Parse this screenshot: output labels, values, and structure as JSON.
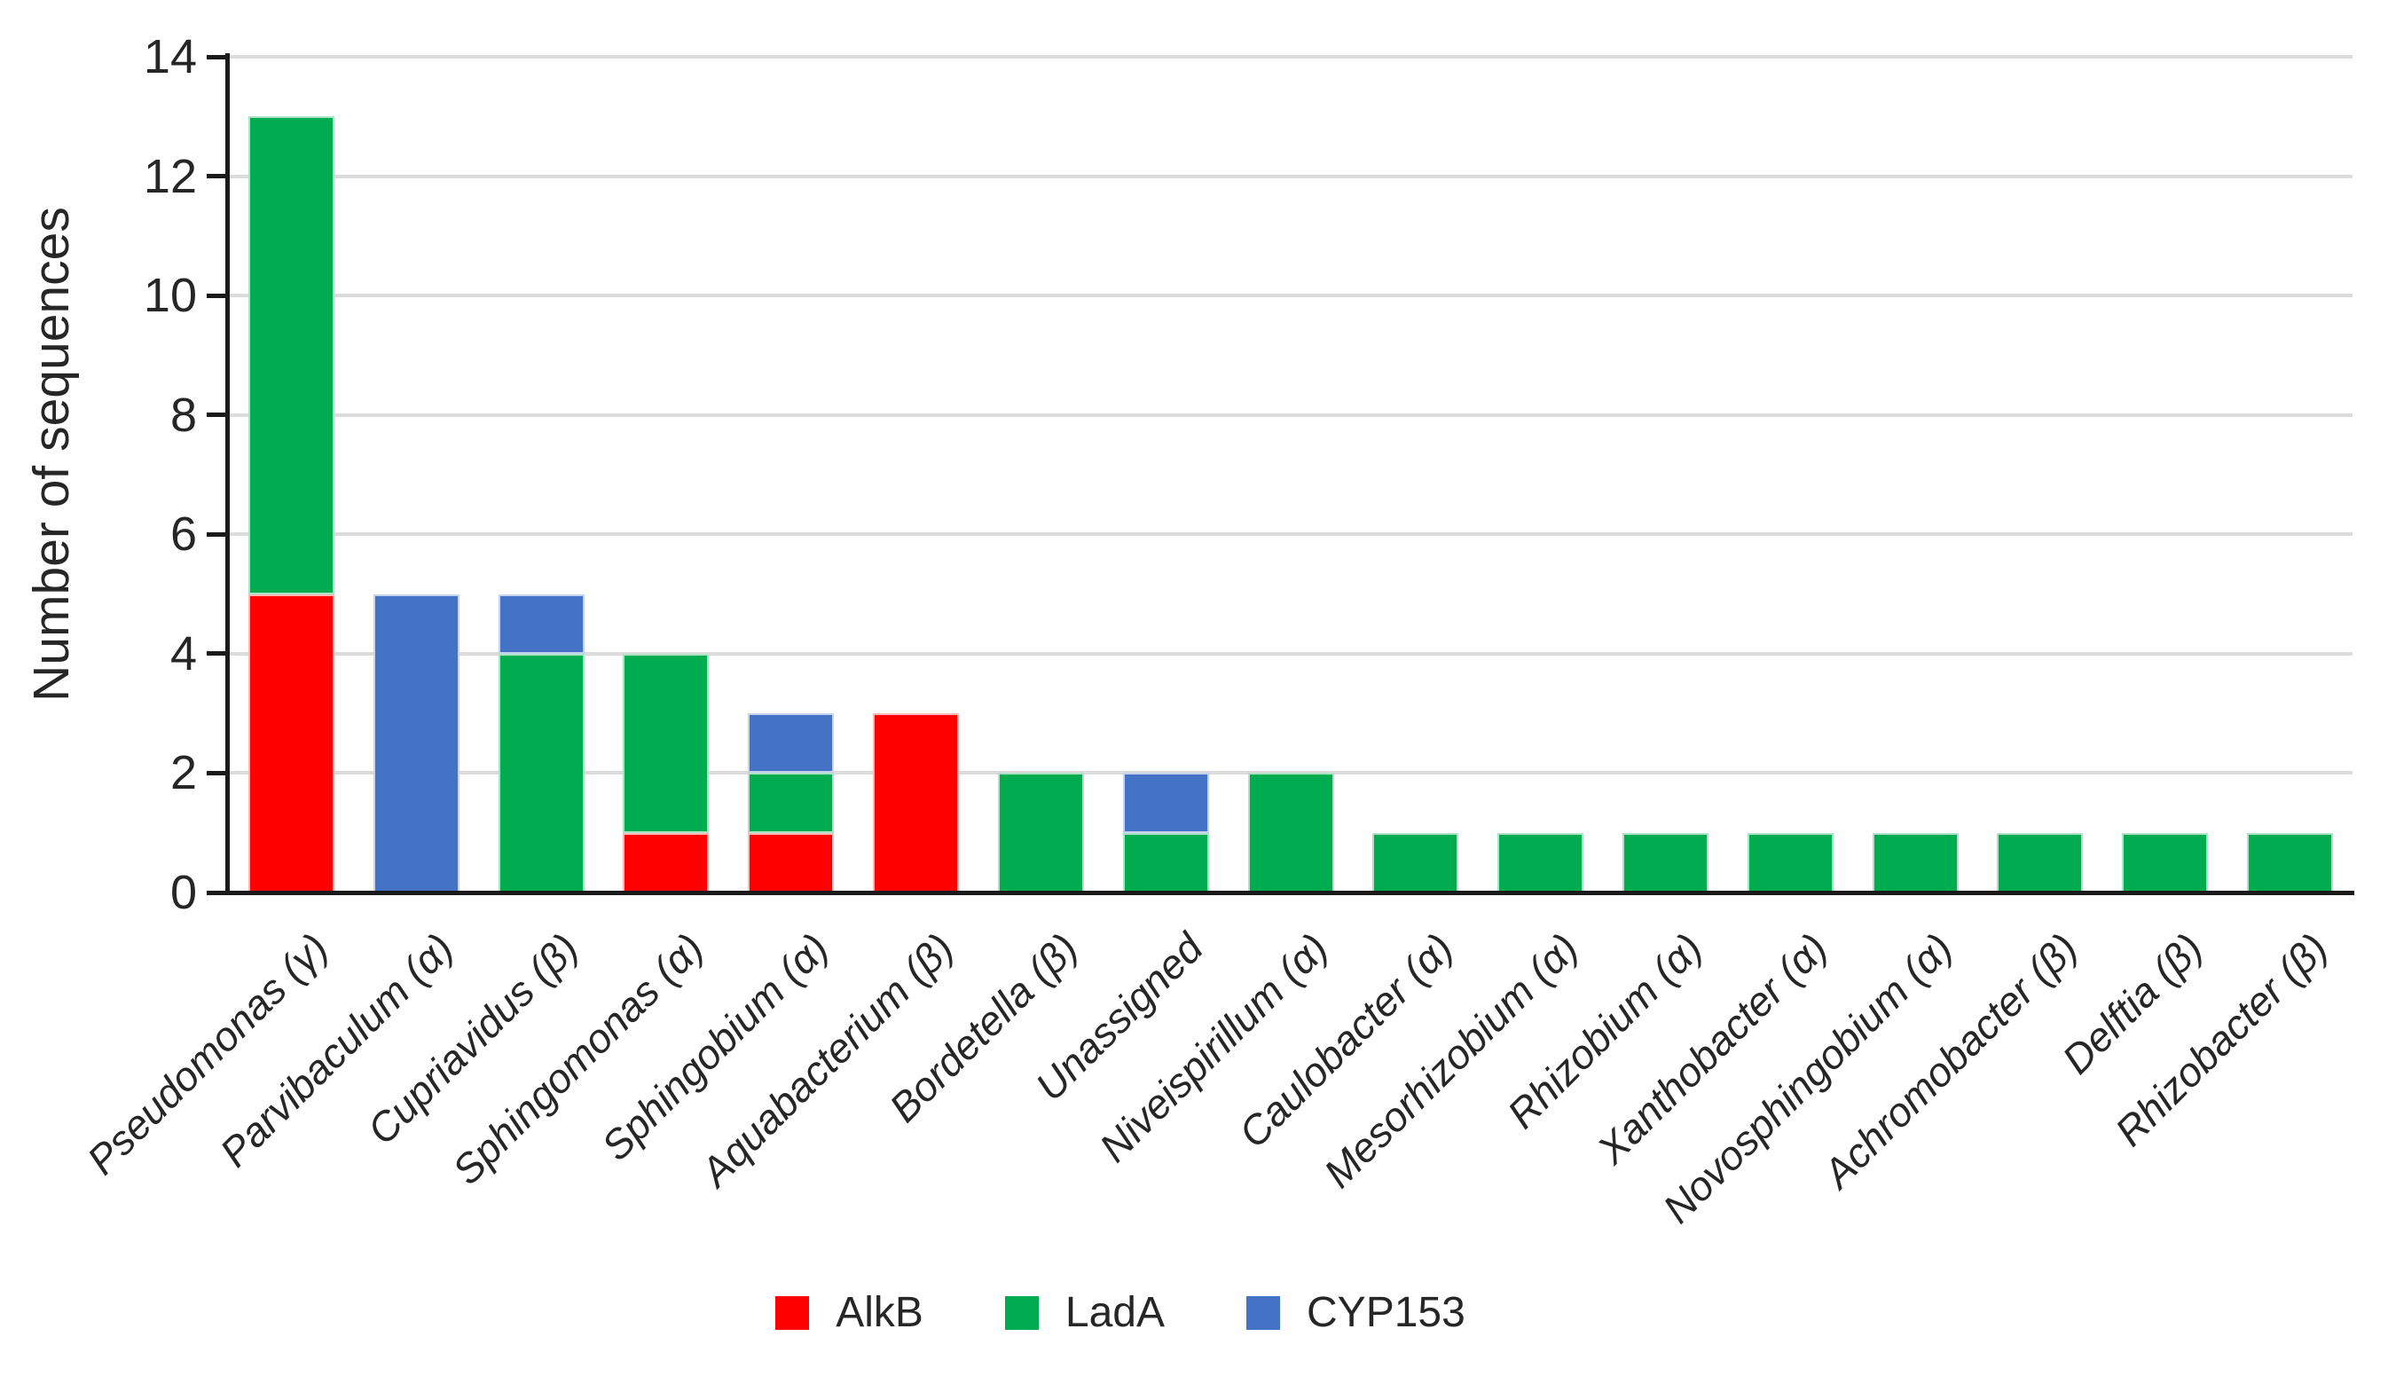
{
  "chart_data": {
    "type": "bar",
    "stacked": true,
    "title": "",
    "xlabel": "",
    "ylabel": "Number of sequences",
    "ylim": [
      0,
      14
    ],
    "yticks": [
      0,
      2,
      4,
      6,
      8,
      10,
      12,
      14
    ],
    "grid": true,
    "legend_position": "bottom",
    "categories": [
      "Pseudomonas (γ)",
      "Parvibaculum (α)",
      "Cupriavidus (β)",
      "Sphingomonas (α)",
      "Sphingobium (α)",
      "Aquabacterium (β)",
      "Bordetella (β)",
      "Unassigned",
      "Niveispirillum (α)",
      "Caulobacter (α)",
      "Mesorhizobium (α)",
      "Rhizobium (α)",
      "Xanthobacter (α)",
      "Novosphingobium (α)",
      "Achromobacter (β)",
      "Delftia (β)",
      "Rhizobacter (β)"
    ],
    "series": [
      {
        "name": "AlkB",
        "color": "#FF0000",
        "border_color": "#FFB9B9",
        "values": [
          5,
          0,
          0,
          1,
          1,
          3,
          0,
          0,
          0,
          0,
          0,
          0,
          0,
          0,
          0,
          0,
          0
        ]
      },
      {
        "name": "LadA",
        "color": "#00AC4F",
        "border_color": "#ACE3C6",
        "values": [
          8,
          0,
          4,
          3,
          1,
          0,
          2,
          1,
          2,
          1,
          1,
          1,
          1,
          1,
          1,
          1,
          1
        ]
      },
      {
        "name": "CYP153",
        "color": "#4472C4",
        "border_color": "#C6D3EE",
        "values": [
          0,
          5,
          1,
          0,
          1,
          0,
          0,
          1,
          0,
          0,
          0,
          0,
          0,
          0,
          0,
          0,
          0
        ]
      }
    ],
    "totals": [
      13,
      5,
      5,
      4,
      3,
      3,
      2,
      2,
      2,
      1,
      1,
      1,
      1,
      1,
      1,
      1,
      1
    ]
  },
  "legend": {
    "items": [
      {
        "label": "AlkB",
        "color": "#FF0000"
      },
      {
        "label": "LadA",
        "color": "#00AC4F"
      },
      {
        "label": "CYP153",
        "color": "#4472C4"
      }
    ]
  },
  "style_colors": {
    "axis": "#1A1A1A",
    "gridline": "#DCDCDC",
    "text": "#262626",
    "background": "#FFFFFF"
  }
}
